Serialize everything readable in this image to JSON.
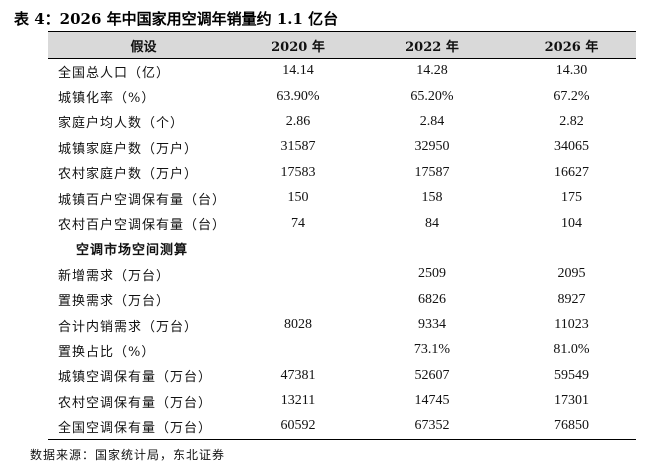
{
  "title": "表 4：2026 年中国家用空调年销量约 1.1 亿台",
  "table": {
    "headers": [
      "假设",
      "2020 年",
      "2022 年",
      "2026 年"
    ],
    "rows": [
      {
        "label": "全国总人口（亿）",
        "values": [
          "14.14",
          "14.28",
          "14.30"
        ],
        "section": false
      },
      {
        "label": "城镇化率（%）",
        "values": [
          "63.90%",
          "65.20%",
          "67.2%"
        ],
        "section": false
      },
      {
        "label": "家庭户均人数（个）",
        "values": [
          "2.86",
          "2.84",
          "2.82"
        ],
        "section": false
      },
      {
        "label": "城镇家庭户数（万户）",
        "values": [
          "31587",
          "32950",
          "34065"
        ],
        "section": false
      },
      {
        "label": "农村家庭户数（万户）",
        "values": [
          "17583",
          "17587",
          "16627"
        ],
        "section": false
      },
      {
        "label": "城镇百户空调保有量（台）",
        "values": [
          "150",
          "158",
          "175"
        ],
        "section": false
      },
      {
        "label": "农村百户空调保有量（台）",
        "values": [
          "74",
          "84",
          "104"
        ],
        "section": false
      },
      {
        "label": "空调市场空间测算",
        "values": [
          "",
          "",
          ""
        ],
        "section": true
      },
      {
        "label": "新增需求（万台）",
        "values": [
          "",
          "2509",
          "2095"
        ],
        "section": false
      },
      {
        "label": "置换需求（万台）",
        "values": [
          "",
          "6826",
          "8927"
        ],
        "section": false
      },
      {
        "label": "合计内销需求（万台）",
        "values": [
          "8028",
          "9334",
          "11023"
        ],
        "section": false
      },
      {
        "label": "置换占比（%）",
        "values": [
          "",
          "73.1%",
          "81.0%"
        ],
        "section": false
      },
      {
        "label": "城镇空调保有量（万台）",
        "values": [
          "47381",
          "52607",
          "59549"
        ],
        "section": false
      },
      {
        "label": "农村空调保有量（万台）",
        "values": [
          "13211",
          "14745",
          "17301"
        ],
        "section": false
      },
      {
        "label": "全国空调保有量（万台）",
        "values": [
          "60592",
          "67352",
          "76850"
        ],
        "section": false
      }
    ]
  },
  "source": "数据来源：国家统计局，东北证券"
}
